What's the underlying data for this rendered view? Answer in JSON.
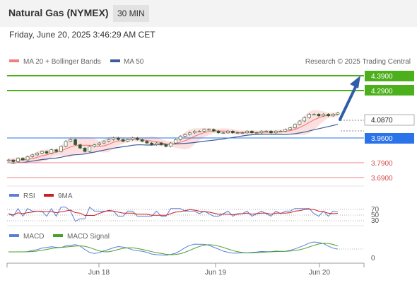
{
  "header": {
    "title": "Natural Gas (NYMEX)",
    "timeframe": "30 MIN",
    "datetime": "Friday, June 20, 2025 3:46:29 AM CET"
  },
  "legend": {
    "ma20": "MA 20 + Bollinger Bands",
    "ma50": "MA 50",
    "credit": "Research © 2025 Trading Central",
    "rsi": "RSI",
    "rsi_ma": "9MA",
    "macd": "MACD",
    "macd_signal": "MACD Signal"
  },
  "colors": {
    "candle": "#2f5a2f",
    "ma20": "#f08080",
    "bollinger_fill": "#fbdada",
    "ma50": "#3d5c9a",
    "resistance": "#4caf1c",
    "pivot": "#2b73e8",
    "support": "#e8868a",
    "projection_arrow": "#2f5ea8",
    "rsi": "#5b7fd6",
    "rsi_ma": "#cc1f1f",
    "macd": "#5b7fd6",
    "macd_signal": "#4aa02c"
  },
  "chart_data": [
    {
      "type": "line",
      "panel": "price",
      "description_series": [
        "candlesticks",
        "MA 20 + Bollinger Bands",
        "MA 50"
      ],
      "x": [
        "Jun 18",
        "Jun 19",
        "Jun 20"
      ],
      "last_price": "4.0870",
      "y_range": [
        3.66,
        4.42
      ],
      "levels": [
        {
          "kind": "resistance",
          "value": "4.3900"
        },
        {
          "kind": "resistance",
          "value": "4.2900"
        },
        {
          "kind": "pivot",
          "value": "3.9600"
        },
        {
          "kind": "support",
          "value": "3.7900"
        },
        {
          "kind": "support",
          "value": "3.6900"
        }
      ],
      "close_path": [
        3.81,
        3.8,
        3.82,
        3.81,
        3.83,
        3.84,
        3.85,
        3.86,
        3.85,
        3.87,
        3.86,
        3.89,
        3.92,
        3.93,
        3.9,
        3.88,
        3.86,
        3.89,
        3.9,
        3.91,
        3.92,
        3.93,
        3.94,
        3.93,
        3.92,
        3.93,
        3.94,
        3.93,
        3.92,
        3.91,
        3.9,
        3.91,
        3.9,
        3.89,
        3.91,
        3.93,
        3.95,
        3.96,
        3.97,
        3.98,
        3.98,
        3.99,
        3.99,
        3.98,
        3.97,
        3.97,
        3.98,
        3.97,
        3.97,
        3.97,
        3.98,
        3.97,
        3.97,
        3.98,
        3.98,
        3.97,
        3.98,
        3.98,
        3.99,
        4.0,
        4.02,
        4.04,
        4.06,
        4.08,
        4.08,
        4.07,
        4.08,
        4.07,
        4.08,
        4.087
      ]
    },
    {
      "type": "line",
      "panel": "rsi",
      "series": [
        {
          "name": "RSI"
        },
        {
          "name": "9MA"
        }
      ],
      "y_ticks": [
        "70",
        "50",
        "30"
      ]
    },
    {
      "type": "line",
      "panel": "macd",
      "series": [
        {
          "name": "MACD"
        },
        {
          "name": "MACD Signal"
        }
      ],
      "y_ticks": [
        "0"
      ]
    }
  ]
}
